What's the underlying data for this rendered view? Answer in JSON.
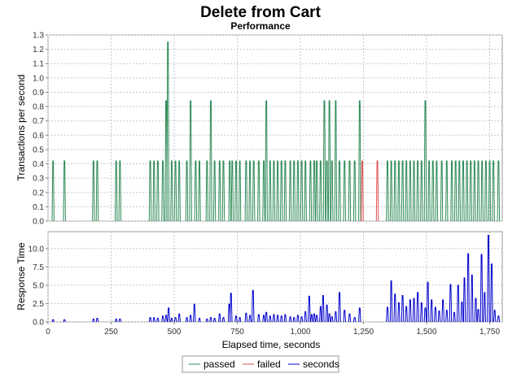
{
  "chart_data": {
    "type": "line",
    "title": "Delete from Cart",
    "subtitle": "Performance",
    "xlabel": "Elapsed time, seconds",
    "x_range": [
      0,
      1800
    ],
    "x_ticks": [
      {
        "v": 0,
        "label": "0"
      },
      {
        "v": 250,
        "label": "250"
      },
      {
        "v": 500,
        "label": "500"
      },
      {
        "v": 750,
        "label": "750"
      },
      {
        "v": 1000,
        "label": "1,000"
      },
      {
        "v": 1250,
        "label": "1,250"
      },
      {
        "v": 1500,
        "label": "1,500"
      },
      {
        "v": 1750,
        "label": "1,750"
      }
    ],
    "grid": true,
    "legend_position": "bottom",
    "panels": [
      {
        "ylabel": "Transactions per second",
        "ylim": [
          0,
          1.3
        ],
        "y_ticks": [
          "0.0",
          "0.1",
          "0.2",
          "0.3",
          "0.4",
          "0.5",
          "0.6",
          "0.7",
          "0.8",
          "0.9",
          "1.0",
          "1.1",
          "1.2",
          "1.3"
        ],
        "series": [
          {
            "name": "passed",
            "color": "#2e8b57",
            "spikes": [
              [
                20,
                0.42
              ],
              [
                65,
                0.42
              ],
              [
                180,
                0.42
              ],
              [
                195,
                0.42
              ],
              [
                270,
                0.42
              ],
              [
                285,
                0.42
              ],
              [
                405,
                0.42
              ],
              [
                420,
                0.42
              ],
              [
                435,
                0.42
              ],
              [
                455,
                0.42
              ],
              [
                468,
                0.84
              ],
              [
                475,
                1.25
              ],
              [
                490,
                0.42
              ],
              [
                505,
                0.42
              ],
              [
                520,
                0.42
              ],
              [
                550,
                0.42
              ],
              [
                565,
                0.84
              ],
              [
                585,
                0.42
              ],
              [
                600,
                0.42
              ],
              [
                630,
                0.42
              ],
              [
                645,
                0.84
              ],
              [
                660,
                0.42
              ],
              [
                680,
                0.42
              ],
              [
                695,
                0.42
              ],
              [
                720,
                0.42
              ],
              [
                730,
                0.42
              ],
              [
                745,
                0.42
              ],
              [
                760,
                0.42
              ],
              [
                785,
                0.42
              ],
              [
                800,
                0.42
              ],
              [
                815,
                0.42
              ],
              [
                835,
                0.42
              ],
              [
                855,
                0.42
              ],
              [
                865,
                0.84
              ],
              [
                880,
                0.42
              ],
              [
                895,
                0.42
              ],
              [
                910,
                0.42
              ],
              [
                925,
                0.42
              ],
              [
                940,
                0.42
              ],
              [
                960,
                0.42
              ],
              [
                975,
                0.42
              ],
              [
                990,
                0.42
              ],
              [
                1005,
                0.42
              ],
              [
                1020,
                0.42
              ],
              [
                1040,
                0.42
              ],
              [
                1055,
                0.42
              ],
              [
                1065,
                0.42
              ],
              [
                1080,
                0.42
              ],
              [
                1095,
                0.84
              ],
              [
                1105,
                0.42
              ],
              [
                1115,
                0.84
              ],
              [
                1125,
                0.42
              ],
              [
                1140,
                0.84
              ],
              [
                1155,
                0.42
              ],
              [
                1175,
                0.42
              ],
              [
                1195,
                0.42
              ],
              [
                1215,
                0.42
              ],
              [
                1235,
                0.84
              ],
              [
                1345,
                0.42
              ],
              [
                1360,
                0.42
              ],
              [
                1375,
                0.42
              ],
              [
                1390,
                0.42
              ],
              [
                1405,
                0.42
              ],
              [
                1420,
                0.42
              ],
              [
                1435,
                0.42
              ],
              [
                1450,
                0.42
              ],
              [
                1465,
                0.42
              ],
              [
                1480,
                0.42
              ],
              [
                1495,
                0.84
              ],
              [
                1510,
                0.42
              ],
              [
                1525,
                0.42
              ],
              [
                1540,
                0.42
              ],
              [
                1560,
                0.42
              ],
              [
                1580,
                0.42
              ],
              [
                1600,
                0.42
              ],
              [
                1615,
                0.42
              ],
              [
                1630,
                0.42
              ],
              [
                1645,
                0.42
              ],
              [
                1660,
                0.42
              ],
              [
                1675,
                0.42
              ],
              [
                1690,
                0.42
              ],
              [
                1705,
                0.42
              ],
              [
                1720,
                0.42
              ],
              [
                1735,
                0.42
              ],
              [
                1750,
                0.42
              ],
              [
                1765,
                0.42
              ],
              [
                1785,
                0.42
              ]
            ]
          },
          {
            "name": "failed",
            "color": "#e05050",
            "spikes": [
              [
                1245,
                0.42
              ],
              [
                1305,
                0.42
              ]
            ]
          }
        ]
      },
      {
        "ylabel": "Response Time",
        "ylim": [
          0,
          12.3
        ],
        "y_ticks": [
          "0.0",
          "2.5",
          "5.0",
          "7.5",
          "10.0"
        ],
        "series": [
          {
            "name": "seconds",
            "color": "#0000cc",
            "spikes": [
              [
                20,
                0.3
              ],
              [
                65,
                0.3
              ],
              [
                180,
                0.4
              ],
              [
                195,
                0.5
              ],
              [
                270,
                0.4
              ],
              [
                285,
                0.4
              ],
              [
                405,
                0.6
              ],
              [
                420,
                0.6
              ],
              [
                435,
                0.5
              ],
              [
                455,
                0.8
              ],
              [
                468,
                0.9
              ],
              [
                478,
                1.9
              ],
              [
                490,
                0.5
              ],
              [
                505,
                0.6
              ],
              [
                520,
                1.1
              ],
              [
                550,
                0.6
              ],
              [
                565,
                0.9
              ],
              [
                580,
                2.4
              ],
              [
                600,
                0.5
              ],
              [
                630,
                0.4
              ],
              [
                645,
                0.6
              ],
              [
                660,
                0.5
              ],
              [
                680,
                1.1
              ],
              [
                695,
                0.6
              ],
              [
                718,
                2.4
              ],
              [
                725,
                3.9
              ],
              [
                745,
                0.8
              ],
              [
                760,
                0.6
              ],
              [
                785,
                1.2
              ],
              [
                800,
                0.9
              ],
              [
                812,
                4.3
              ],
              [
                835,
                1.0
              ],
              [
                855,
                0.9
              ],
              [
                865,
                1.3
              ],
              [
                880,
                0.8
              ],
              [
                895,
                1.0
              ],
              [
                910,
                0.9
              ],
              [
                925,
                0.8
              ],
              [
                940,
                1.0
              ],
              [
                960,
                0.7
              ],
              [
                975,
                0.6
              ],
              [
                990,
                0.9
              ],
              [
                1005,
                0.7
              ],
              [
                1020,
                1.4
              ],
              [
                1035,
                3.5
              ],
              [
                1045,
                1.0
              ],
              [
                1055,
                1.1
              ],
              [
                1065,
                0.9
              ],
              [
                1080,
                2.1
              ],
              [
                1090,
                3.6
              ],
              [
                1105,
                2.3
              ],
              [
                1115,
                1.1
              ],
              [
                1125,
                0.7
              ],
              [
                1140,
                1.4
              ],
              [
                1155,
                4.0
              ],
              [
                1175,
                1.6
              ],
              [
                1195,
                1.1
              ],
              [
                1215,
                0.6
              ],
              [
                1235,
                1.9
              ],
              [
                1345,
                2.0
              ],
              [
                1360,
                5.6
              ],
              [
                1375,
                3.8
              ],
              [
                1390,
                2.6
              ],
              [
                1405,
                3.6
              ],
              [
                1420,
                2.1
              ],
              [
                1435,
                3.0
              ],
              [
                1450,
                3.2
              ],
              [
                1465,
                4.0
              ],
              [
                1480,
                2.6
              ],
              [
                1495,
                1.9
              ],
              [
                1505,
                5.4
              ],
              [
                1520,
                3.0
              ],
              [
                1535,
                2.0
              ],
              [
                1550,
                1.5
              ],
              [
                1565,
                3.0
              ],
              [
                1580,
                1.6
              ],
              [
                1595,
                5.1
              ],
              [
                1610,
                1.3
              ],
              [
                1625,
                5.0
              ],
              [
                1640,
                2.7
              ],
              [
                1650,
                6.0
              ],
              [
                1665,
                9.3
              ],
              [
                1680,
                6.4
              ],
              [
                1695,
                3.2
              ],
              [
                1705,
                1.7
              ],
              [
                1718,
                9.2
              ],
              [
                1730,
                4.0
              ],
              [
                1745,
                11.8
              ],
              [
                1758,
                7.9
              ],
              [
                1770,
                1.6
              ],
              [
                1785,
                0.8
              ]
            ]
          }
        ]
      }
    ],
    "legend": [
      {
        "label": "passed",
        "color": "#2e8b57"
      },
      {
        "label": "failed",
        "color": "#e05050"
      },
      {
        "label": "seconds",
        "color": "#0000cc"
      }
    ]
  }
}
